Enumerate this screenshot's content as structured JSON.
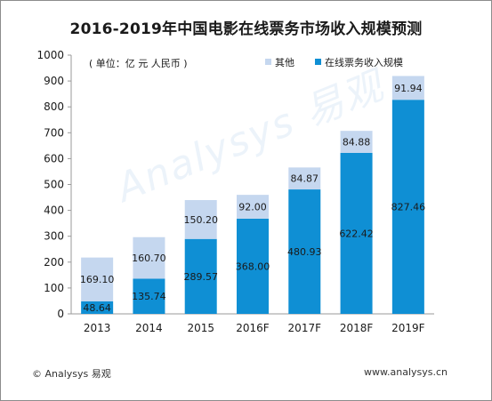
{
  "page": {
    "title": "2016-2019年中国电影在线票务市场收入规模预测",
    "footer_left": "© Analysys 易观",
    "footer_right": "www.analysys.cn",
    "watermark": "Analysys 易观"
  },
  "colors": {
    "other": "#c5d7ef",
    "main": "#0f8fd4",
    "axis": "#9a9a9a",
    "text": "#1a1a1a"
  },
  "chart_data": {
    "type": "bar",
    "stacked": true,
    "unit_note": "( 单位：亿 元 人民币 )",
    "categories": [
      "2013",
      "2014",
      "2015",
      "2016F",
      "2017F",
      "2018F",
      "2019F"
    ],
    "series": [
      {
        "name": "在线票务收入规模",
        "values": [
          48.64,
          135.74,
          289.57,
          368.0,
          480.93,
          622.42,
          827.46
        ],
        "labels": [
          "48.64",
          "135.74",
          "289.57",
          "368.00",
          "480.93",
          "622.42",
          "827.46"
        ]
      },
      {
        "name": "其他",
        "values": [
          169.1,
          160.7,
          150.2,
          92.0,
          84.87,
          84.88,
          91.94
        ],
        "labels": [
          "169.10",
          "160.70",
          "150.20",
          "92.00",
          "84.87",
          "84.88",
          "91.94"
        ]
      }
    ],
    "legend_order": [
      "其他",
      "在线票务收入规模"
    ],
    "legend_position": "top-right",
    "ylim": [
      0,
      1000
    ],
    "yticks": [
      0,
      100,
      200,
      300,
      400,
      500,
      600,
      700,
      800,
      900,
      1000
    ],
    "grid": false
  }
}
